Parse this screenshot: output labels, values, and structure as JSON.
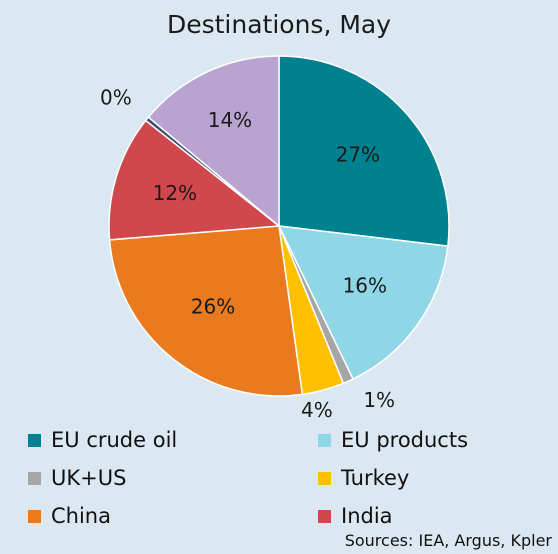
{
  "chart_data": {
    "type": "pie",
    "title": "Destinations, May",
    "slices": [
      {
        "label": "EU crude oil",
        "value": 27,
        "display": "27%",
        "color": "#00818f"
      },
      {
        "label": "EU products",
        "value": 16,
        "display": "16%",
        "color": "#8fd6e6"
      },
      {
        "label": "UK+US",
        "value": 1,
        "display": "1%",
        "color": "#a6a6a6"
      },
      {
        "label": "Turkey",
        "value": 4,
        "display": "4%",
        "color": "#ffc000"
      },
      {
        "label": "China",
        "value": 26,
        "display": "26%",
        "color": "#ea7a1e"
      },
      {
        "label": "India",
        "value": 12,
        "display": "12%",
        "color": "#d1474e"
      },
      {
        "label": "",
        "value": 0.4,
        "display": "0%",
        "color": "#3c4a6e"
      },
      {
        "label": "",
        "value": 14,
        "display": "14%",
        "color": "#b9a4d1"
      }
    ],
    "legend": [
      {
        "label": "EU crude oil",
        "color": "#00818f"
      },
      {
        "label": "EU products",
        "color": "#8fd6e6"
      },
      {
        "label": "UK+US",
        "color": "#a6a6a6"
      },
      {
        "label": "Turkey",
        "color": "#ffc000"
      },
      {
        "label": "China",
        "color": "#ea7a1e"
      },
      {
        "label": "India",
        "color": "#d1474e"
      }
    ]
  },
  "source": "Sources: IEA, Argus, Kpler"
}
